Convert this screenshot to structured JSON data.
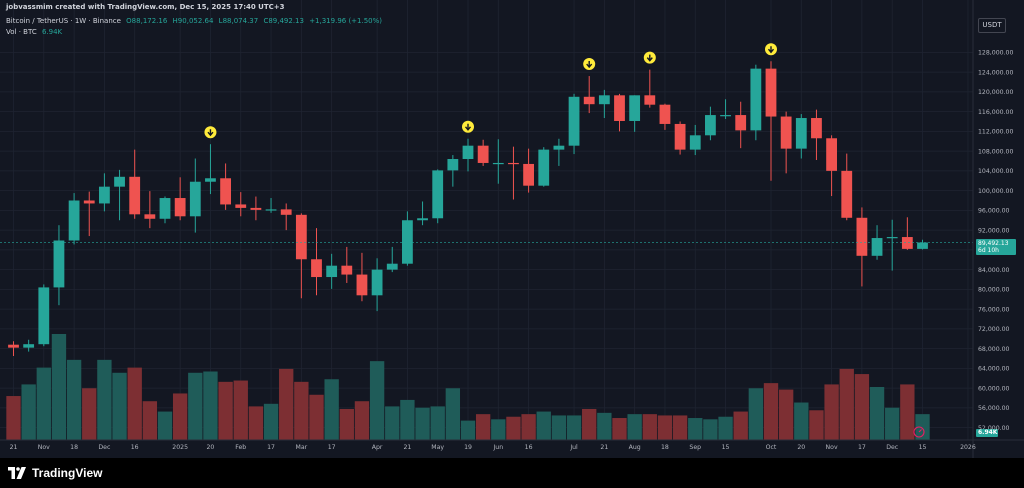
{
  "header": {
    "author_line": "jobvassmim created with TradingView.com, Dec 15, 2025 17:40 UTC+3",
    "symbol": "Bitcoin / TetherUS · 1W · Binance",
    "ohlc": {
      "open": "O88,172.16",
      "high": "H90,052.64",
      "low": "L88,074.37",
      "close": "C89,492.13",
      "change": "+1,319.96 (+1.50%)"
    },
    "volume_label": "Vol · BTC",
    "volume_value": "6.94K"
  },
  "currency": "USDT",
  "last_price": {
    "value": "89,492.13",
    "countdown": "6d 10h"
  },
  "volume_badge": "6.94K",
  "footer": {
    "brand": "TradingView"
  },
  "colors": {
    "background": "#131722",
    "up": "#26a69a",
    "down": "#ef5350",
    "up_volume": "#1f5c59",
    "down_volume": "#7d2f33",
    "marker": "#ffeb3b",
    "grid": "#1f2431"
  },
  "chart_data": {
    "type": "candlestick",
    "timeframe": "1W",
    "y_axis": {
      "scale": "linear",
      "ticks": [
        52000,
        56000,
        60000,
        64000,
        68000,
        72000,
        76000,
        80000,
        84000,
        88000,
        92000,
        96000,
        100000,
        104000,
        108000,
        112000,
        116000,
        120000,
        124000,
        128000
      ],
      "tick_labels": [
        "52,000.00",
        "56,000.00",
        "60,000.00",
        "64,000.00",
        "68,000.00",
        "72,000.00",
        "76,000.00",
        "80,000.00",
        "84,000.00",
        "88,000.00",
        "92,000.00",
        "96,000.00",
        "100,000.00",
        "104,000.00",
        "108,000.00",
        "112,000.00",
        "116,000.00",
        "120,000.00",
        "124,000.00",
        "128,000.00"
      ],
      "range": [
        49500,
        130500
      ]
    },
    "x_axis": {
      "ticks": [
        {
          "label": "21",
          "index": 0
        },
        {
          "label": "Nov",
          "index": 2
        },
        {
          "label": "18",
          "index": 4
        },
        {
          "label": "Dec",
          "index": 6
        },
        {
          "label": "16",
          "index": 8
        },
        {
          "label": "2025",
          "index": 11
        },
        {
          "label": "20",
          "index": 13
        },
        {
          "label": "Feb",
          "index": 15
        },
        {
          "label": "17",
          "index": 17
        },
        {
          "label": "Mar",
          "index": 19
        },
        {
          "label": "17",
          "index": 21
        },
        {
          "label": "Apr",
          "index": 24
        },
        {
          "label": "21",
          "index": 26
        },
        {
          "label": "May",
          "index": 28
        },
        {
          "label": "19",
          "index": 30
        },
        {
          "label": "Jun",
          "index": 32
        },
        {
          "label": "16",
          "index": 34
        },
        {
          "label": "Jul",
          "index": 37
        },
        {
          "label": "21",
          "index": 39
        },
        {
          "label": "Aug",
          "index": 41
        },
        {
          "label": "18",
          "index": 43
        },
        {
          "label": "Sep",
          "index": 45
        },
        {
          "label": "15",
          "index": 47
        },
        {
          "label": "Oct",
          "index": 50
        },
        {
          "label": "20",
          "index": 52
        },
        {
          "label": "Nov",
          "index": 54
        },
        {
          "label": "17",
          "index": 56
        },
        {
          "label": "Dec",
          "index": 58
        },
        {
          "label": "15",
          "index": 60
        },
        {
          "label": "2026",
          "index": 63
        }
      ]
    },
    "candles": [
      {
        "o": 68800,
        "h": 69500,
        "l": 66500,
        "c": 68200
      },
      {
        "o": 68200,
        "h": 69800,
        "l": 67400,
        "c": 68900
      },
      {
        "o": 68900,
        "h": 81000,
        "l": 68500,
        "c": 80400
      },
      {
        "o": 80400,
        "h": 93000,
        "l": 76800,
        "c": 89900
      },
      {
        "o": 89900,
        "h": 99500,
        "l": 89100,
        "c": 98000
      },
      {
        "o": 98000,
        "h": 99800,
        "l": 90800,
        "c": 97400
      },
      {
        "o": 97400,
        "h": 103500,
        "l": 95800,
        "c": 100800
      },
      {
        "o": 100800,
        "h": 104200,
        "l": 94000,
        "c": 102800
      },
      {
        "o": 102800,
        "h": 108300,
        "l": 94300,
        "c": 95200
      },
      {
        "o": 95200,
        "h": 99900,
        "l": 92400,
        "c": 94300
      },
      {
        "o": 94300,
        "h": 98800,
        "l": 93400,
        "c": 98500
      },
      {
        "o": 98500,
        "h": 102700,
        "l": 94000,
        "c": 94800
      },
      {
        "o": 94800,
        "h": 106500,
        "l": 91500,
        "c": 101800
      },
      {
        "o": 101800,
        "h": 109400,
        "l": 99300,
        "c": 102500
      },
      {
        "o": 102500,
        "h": 105500,
        "l": 96100,
        "c": 97200
      },
      {
        "o": 97200,
        "h": 99700,
        "l": 94800,
        "c": 96500
      },
      {
        "o": 96500,
        "h": 98800,
        "l": 94000,
        "c": 96100
      },
      {
        "o": 96100,
        "h": 98500,
        "l": 95500,
        "c": 96200
      },
      {
        "o": 96200,
        "h": 97400,
        "l": 92000,
        "c": 95100
      },
      {
        "o": 95100,
        "h": 95400,
        "l": 78200,
        "c": 86100
      },
      {
        "o": 86100,
        "h": 92400,
        "l": 78800,
        "c": 82500
      },
      {
        "o": 82500,
        "h": 87200,
        "l": 80100,
        "c": 84800
      },
      {
        "o": 84800,
        "h": 88600,
        "l": 81300,
        "c": 83000
      },
      {
        "o": 83000,
        "h": 87400,
        "l": 77600,
        "c": 78800
      },
      {
        "o": 78800,
        "h": 86300,
        "l": 75600,
        "c": 84000
      },
      {
        "o": 84000,
        "h": 88600,
        "l": 83500,
        "c": 85200
      },
      {
        "o": 85200,
        "h": 95800,
        "l": 84800,
        "c": 94000
      },
      {
        "o": 94000,
        "h": 97800,
        "l": 93000,
        "c": 94400
      },
      {
        "o": 94400,
        "h": 104300,
        "l": 93400,
        "c": 104100
      },
      {
        "o": 104100,
        "h": 107200,
        "l": 100800,
        "c": 106400
      },
      {
        "o": 106400,
        "h": 110500,
        "l": 103900,
        "c": 109100
      },
      {
        "o": 109100,
        "h": 110300,
        "l": 105000,
        "c": 105600
      },
      {
        "o": 105600,
        "h": 110400,
        "l": 101400,
        "c": 105600
      },
      {
        "o": 105600,
        "h": 108900,
        "l": 98200,
        "c": 105400
      },
      {
        "o": 105400,
        "h": 108500,
        "l": 99600,
        "c": 101000
      },
      {
        "o": 101000,
        "h": 108800,
        "l": 100800,
        "c": 108300
      },
      {
        "o": 108300,
        "h": 110500,
        "l": 105000,
        "c": 109100
      },
      {
        "o": 109100,
        "h": 119600,
        "l": 107400,
        "c": 119000
      },
      {
        "o": 119000,
        "h": 123200,
        "l": 115700,
        "c": 117500
      },
      {
        "o": 117500,
        "h": 120400,
        "l": 114700,
        "c": 119300
      },
      {
        "o": 119300,
        "h": 119600,
        "l": 112000,
        "c": 114100
      },
      {
        "o": 114100,
        "h": 119300,
        "l": 111900,
        "c": 119300
      },
      {
        "o": 119300,
        "h": 124500,
        "l": 116800,
        "c": 117400
      },
      {
        "o": 117400,
        "h": 117600,
        "l": 112300,
        "c": 113500
      },
      {
        "o": 113500,
        "h": 114000,
        "l": 107300,
        "c": 108300
      },
      {
        "o": 108300,
        "h": 113300,
        "l": 107200,
        "c": 111200
      },
      {
        "o": 111200,
        "h": 117000,
        "l": 110200,
        "c": 115300
      },
      {
        "o": 115300,
        "h": 118500,
        "l": 114500,
        "c": 115300
      },
      {
        "o": 115300,
        "h": 118000,
        "l": 108600,
        "c": 112200
      },
      {
        "o": 112200,
        "h": 125500,
        "l": 110200,
        "c": 124700
      },
      {
        "o": 124700,
        "h": 126200,
        "l": 102000,
        "c": 115000
      },
      {
        "o": 115000,
        "h": 116000,
        "l": 103500,
        "c": 108500
      },
      {
        "o": 108500,
        "h": 115500,
        "l": 106500,
        "c": 114700
      },
      {
        "o": 114700,
        "h": 116400,
        "l": 106200,
        "c": 110600
      },
      {
        "o": 110600,
        "h": 111200,
        "l": 98900,
        "c": 104000
      },
      {
        "o": 104000,
        "h": 107500,
        "l": 94000,
        "c": 94500
      },
      {
        "o": 94500,
        "h": 96600,
        "l": 80600,
        "c": 86800
      },
      {
        "o": 86800,
        "h": 93000,
        "l": 86000,
        "c": 90400
      },
      {
        "o": 90400,
        "h": 94100,
        "l": 83800,
        "c": 90600
      },
      {
        "o": 90600,
        "h": 94600,
        "l": 88000,
        "c": 88200
      },
      {
        "o": 88200,
        "h": 90050,
        "l": 88070,
        "c": 89490
      }
    ],
    "volume": [
      34,
      43,
      56,
      82,
      62,
      40,
      62,
      52,
      56,
      30,
      22,
      36,
      52,
      53,
      45,
      46,
      26,
      28,
      55,
      45,
      35,
      47,
      24,
      30,
      61,
      26,
      31,
      25,
      26,
      40,
      15,
      20,
      16,
      18,
      20,
      22,
      19,
      19,
      24,
      21,
      17,
      20,
      20,
      19,
      19,
      17,
      16,
      18,
      22,
      40,
      44,
      39,
      29,
      23,
      43,
      55,
      51,
      41,
      25,
      43,
      20
    ],
    "markers": [
      13,
      30,
      38,
      42,
      50
    ]
  }
}
